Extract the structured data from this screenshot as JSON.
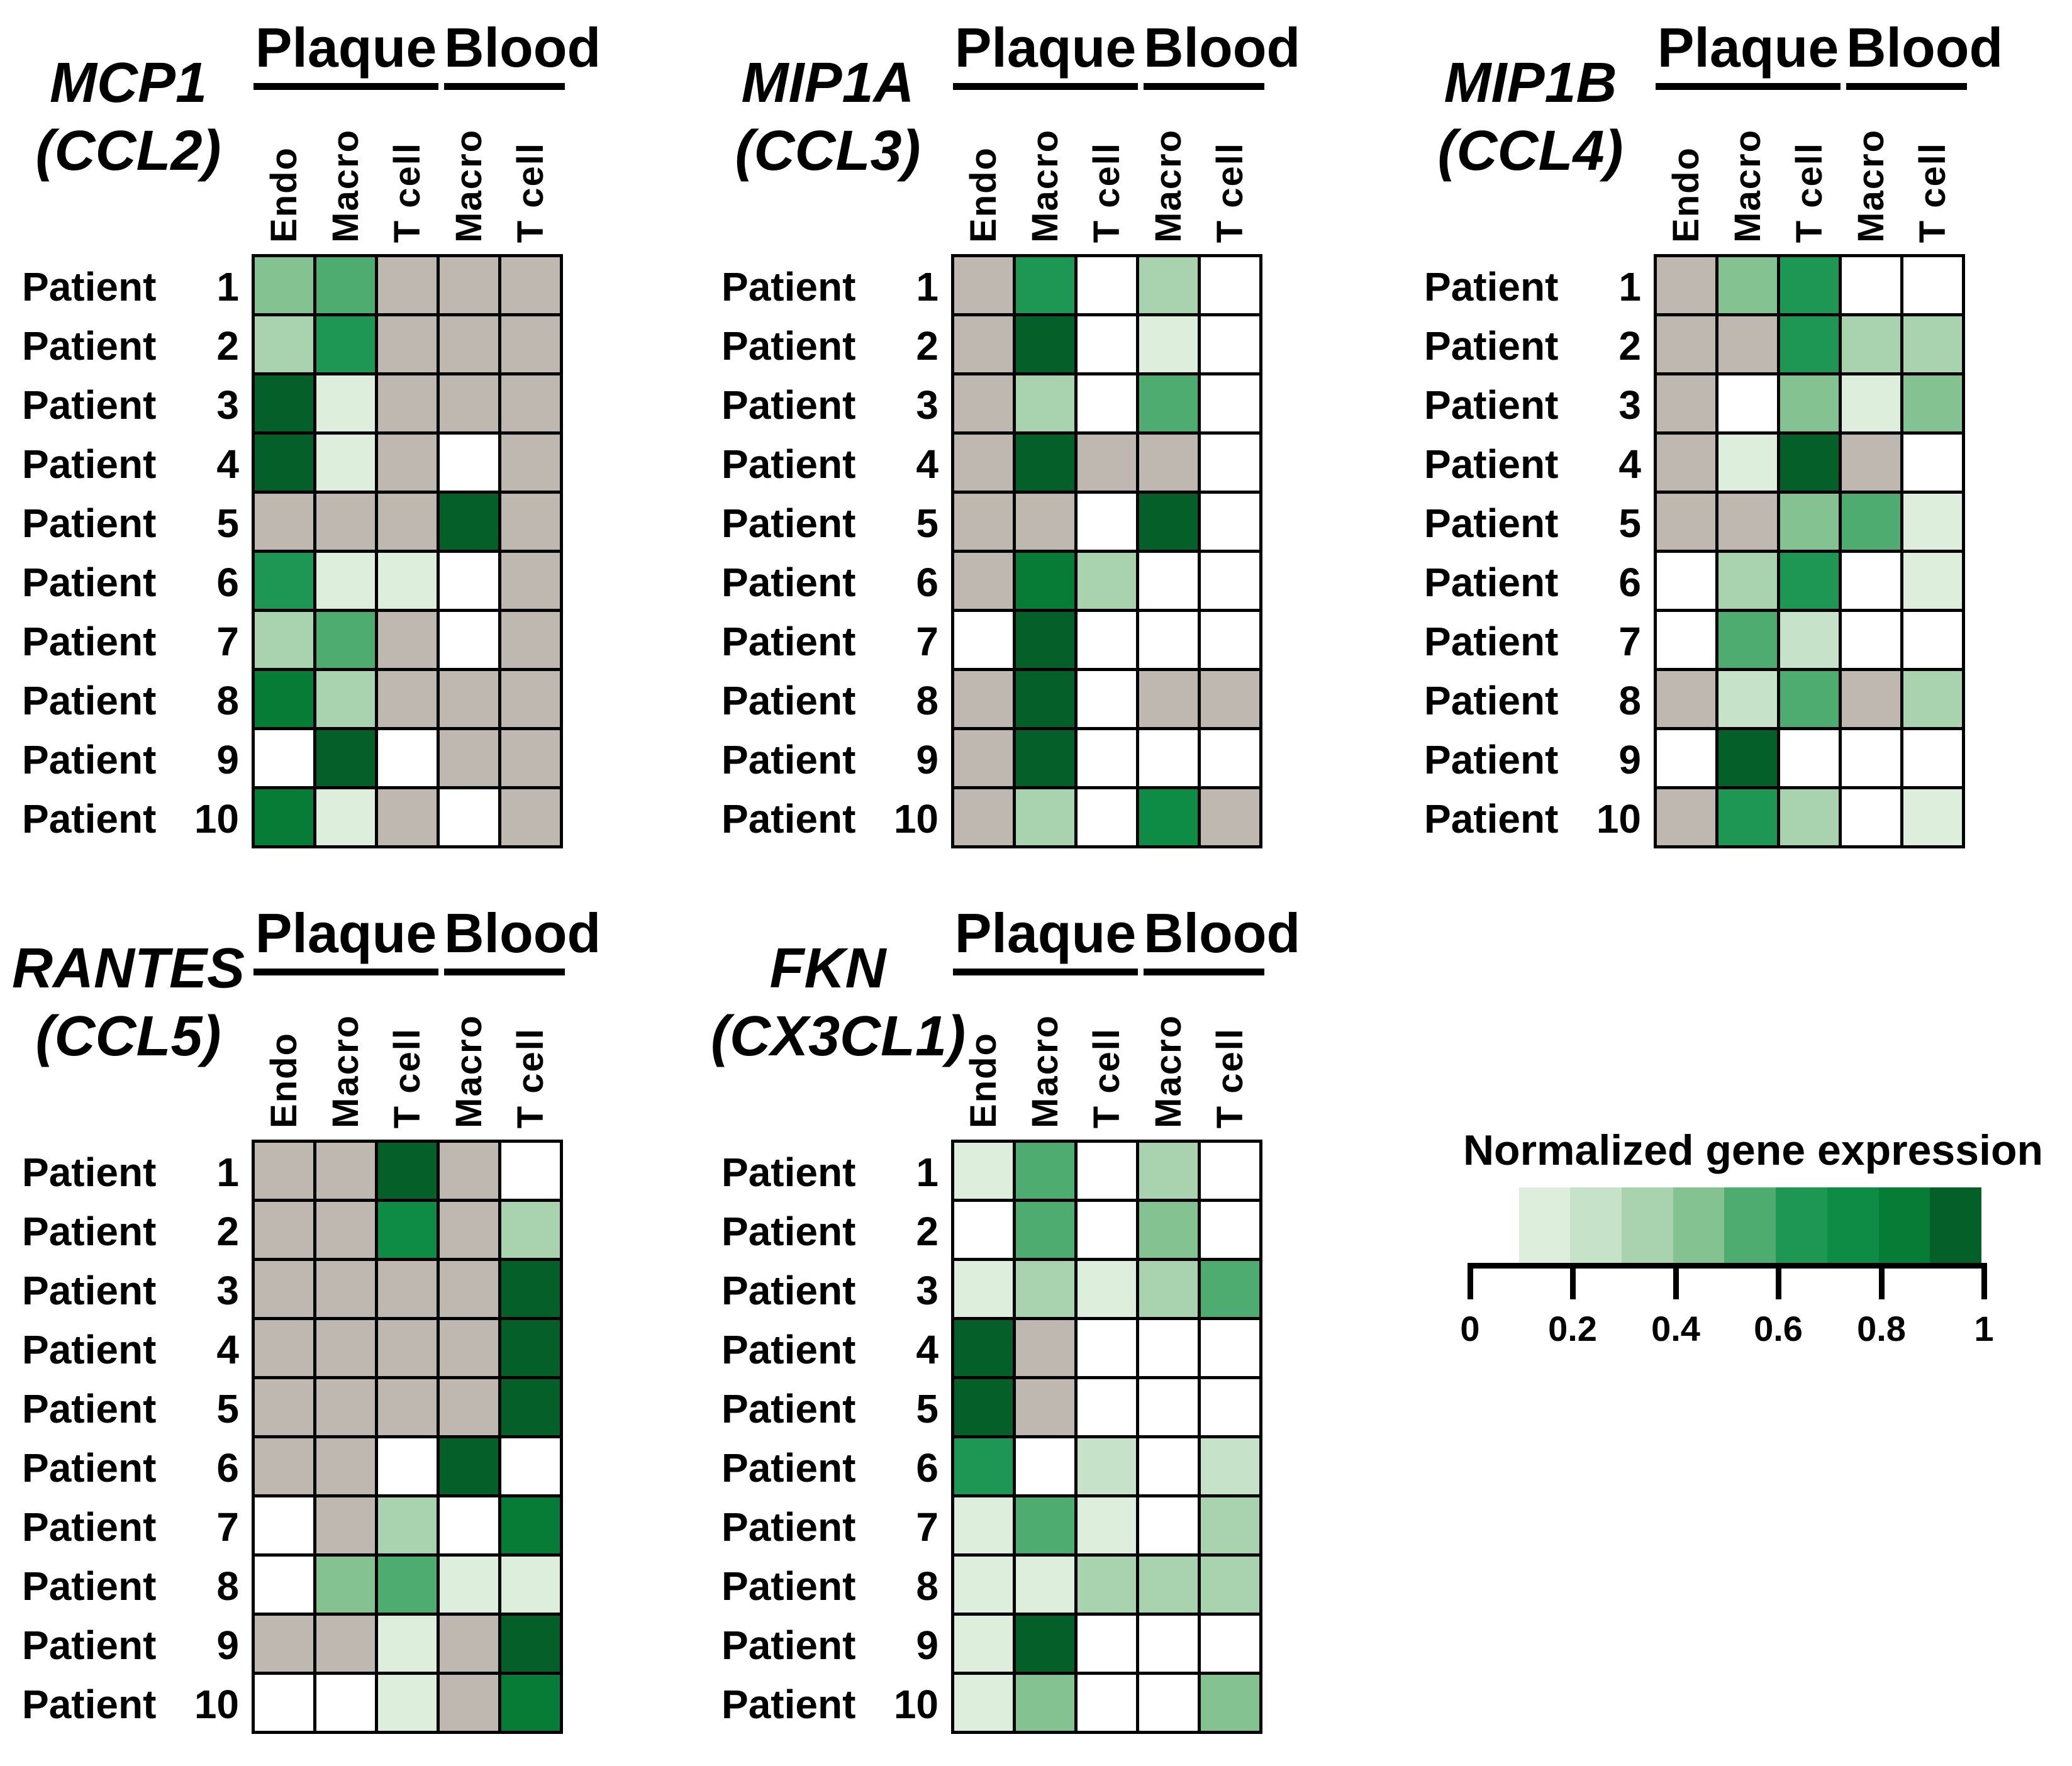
{
  "legend": {
    "title": "Normalized gene expression",
    "tick_labels": [
      "0",
      "0.2",
      "0.4",
      "0.6",
      "0.8",
      "1"
    ],
    "tick_values": [
      0,
      0.2,
      0.4,
      0.6,
      0.8,
      1
    ],
    "palette": [
      "#ddeedd",
      "#c6e2c8",
      "#a9d3ae",
      "#85c292",
      "#4fac70",
      "#1d9753",
      "#0e8b44",
      "#077c37",
      "#045f28"
    ],
    "na_color": "#bfb8b1",
    "zero_color": "#ffffff",
    "bar_range": [
      0.1,
      1
    ]
  },
  "col_groups": [
    {
      "label": "Plaque",
      "span": 3
    },
    {
      "label": "Blood",
      "span": 2
    }
  ],
  "col_labels": [
    "Endo",
    "Macro",
    "T cell",
    "Macro",
    "T cell"
  ],
  "row_labels": [
    {
      "word": "Patient",
      "num": "1"
    },
    {
      "word": "Patient",
      "num": "2"
    },
    {
      "word": "Patient",
      "num": "3"
    },
    {
      "word": "Patient",
      "num": "4"
    },
    {
      "word": "Patient",
      "num": "5"
    },
    {
      "word": "Patient",
      "num": "6"
    },
    {
      "word": "Patient",
      "num": "7"
    },
    {
      "word": "Patient",
      "num": "8"
    },
    {
      "word": "Patient",
      "num": "9"
    },
    {
      "word": "Patient",
      "num": "10"
    }
  ],
  "chart_data": [
    {
      "type": "heatmap",
      "gene": "MCP1",
      "alias": "(CCL2)",
      "columns": [
        "Plaque Endo",
        "Plaque Macro",
        "Plaque T cell",
        "Blood Macro",
        "Blood T cell"
      ],
      "rows": [
        "Patient 1",
        "Patient 2",
        "Patient 3",
        "Patient 4",
        "Patient 5",
        "Patient 6",
        "Patient 7",
        "Patient 8",
        "Patient 9",
        "Patient 10"
      ],
      "values": [
        [
          0.45,
          0.55,
          "NA",
          "NA",
          "NA"
        ],
        [
          0.3,
          0.65,
          "NA",
          "NA",
          "NA"
        ],
        [
          0.9,
          0.15,
          "NA",
          "NA",
          "NA"
        ],
        [
          0.9,
          0.15,
          "NA",
          0,
          "NA"
        ],
        [
          "NA",
          "NA",
          "NA",
          0.9,
          "NA"
        ],
        [
          0.6,
          0.15,
          0.15,
          0,
          "NA"
        ],
        [
          0.3,
          0.55,
          "NA",
          0,
          "NA"
        ],
        [
          0.85,
          0.3,
          "NA",
          "NA",
          "NA"
        ],
        [
          0,
          0.9,
          0,
          "NA",
          "NA"
        ],
        [
          0.85,
          0.15,
          "NA",
          0,
          "NA"
        ]
      ]
    },
    {
      "type": "heatmap",
      "gene": "MIP1A",
      "alias": "(CCL3)",
      "columns": [
        "Plaque Endo",
        "Plaque Macro",
        "Plaque T cell",
        "Blood Macro",
        "Blood T cell"
      ],
      "rows": [
        "Patient 1",
        "Patient 2",
        "Patient 3",
        "Patient 4",
        "Patient 5",
        "Patient 6",
        "Patient 7",
        "Patient 8",
        "Patient 9",
        "Patient 10"
      ],
      "values": [
        [
          "NA",
          0.65,
          0,
          0.3,
          0
        ],
        [
          "NA",
          0.9,
          0,
          0.15,
          0
        ],
        [
          "NA",
          0.35,
          0,
          0.55,
          0
        ],
        [
          "NA",
          0.9,
          "NA",
          "NA",
          0
        ],
        [
          "NA",
          "NA",
          0,
          0.9,
          0
        ],
        [
          "NA",
          0.85,
          0.3,
          0,
          0
        ],
        [
          0,
          0.9,
          0,
          0,
          0
        ],
        [
          "NA",
          0.95,
          0,
          "NA",
          "NA"
        ],
        [
          "NA",
          0.9,
          0,
          0,
          0
        ],
        [
          "NA",
          0.3,
          0,
          0.7,
          "NA"
        ]
      ]
    },
    {
      "type": "heatmap",
      "gene": "MIP1B",
      "alias": "(CCL4)",
      "columns": [
        "Plaque Endo",
        "Plaque Macro",
        "Plaque T cell",
        "Blood Macro",
        "Blood T cell"
      ],
      "rows": [
        "Patient 1",
        "Patient 2",
        "Patient 3",
        "Patient 4",
        "Patient 5",
        "Patient 6",
        "Patient 7",
        "Patient 8",
        "Patient 9",
        "Patient 10"
      ],
      "values": [
        [
          "NA",
          0.4,
          0.6,
          0,
          0
        ],
        [
          "NA",
          "NA",
          0.6,
          0.3,
          0.35
        ],
        [
          "NA",
          0,
          0.45,
          0.15,
          0.45
        ],
        [
          "NA",
          0.15,
          0.9,
          "NA",
          0
        ],
        [
          "NA",
          "NA",
          0.4,
          0.55,
          0.15
        ],
        [
          0,
          0.3,
          0.6,
          0,
          0.15
        ],
        [
          0,
          0.55,
          0.25,
          0,
          0
        ],
        [
          "NA",
          0.25,
          0.5,
          "NA",
          0.35
        ],
        [
          0,
          0.95,
          0,
          0,
          0
        ],
        [
          "NA",
          0.6,
          0.3,
          0,
          0.15
        ]
      ]
    },
    {
      "type": "heatmap",
      "gene": "RANTES",
      "alias": "(CCL5)",
      "columns": [
        "Plaque Endo",
        "Plaque Macro",
        "Plaque T cell",
        "Blood Macro",
        "Blood T cell"
      ],
      "rows": [
        "Patient 1",
        "Patient 2",
        "Patient 3",
        "Patient 4",
        "Patient 5",
        "Patient 6",
        "Patient 7",
        "Patient 8",
        "Patient 9",
        "Patient 10"
      ],
      "values": [
        [
          "NA",
          "NA",
          0.95,
          "NA",
          0
        ],
        [
          "NA",
          "NA",
          0.75,
          "NA",
          0.3
        ],
        [
          "NA",
          "NA",
          "NA",
          "NA",
          0.9
        ],
        [
          "NA",
          "NA",
          "NA",
          "NA",
          0.9
        ],
        [
          "NA",
          "NA",
          "NA",
          "NA",
          0.9
        ],
        [
          "NA",
          "NA",
          0,
          0.9,
          0
        ],
        [
          0,
          "NA",
          0.3,
          0,
          0.8
        ],
        [
          0,
          0.45,
          0.5,
          0.15,
          0.15
        ],
        [
          "NA",
          "NA",
          0.15,
          "NA",
          0.9
        ],
        [
          0,
          0,
          0.15,
          "NA",
          0.8
        ]
      ]
    },
    {
      "type": "heatmap",
      "gene": "FKN",
      "alias": "(CX3CL1)",
      "columns": [
        "Plaque Endo",
        "Plaque Macro",
        "Plaque T cell",
        "Blood Macro",
        "Blood T cell"
      ],
      "rows": [
        "Patient 1",
        "Patient 2",
        "Patient 3",
        "Patient 4",
        "Patient 5",
        "Patient 6",
        "Patient 7",
        "Patient 8",
        "Patient 9",
        "Patient 10"
      ],
      "values": [
        [
          0.15,
          0.5,
          0,
          0.3,
          0
        ],
        [
          0,
          0.5,
          0,
          0.45,
          0
        ],
        [
          0.15,
          0.3,
          0.15,
          0.35,
          0.5
        ],
        [
          0.9,
          "NA",
          0,
          0,
          0
        ],
        [
          0.9,
          "NA",
          0,
          0,
          0
        ],
        [
          0.6,
          0,
          0.2,
          0,
          0.2
        ],
        [
          0.15,
          0.5,
          0.15,
          0,
          0.35
        ],
        [
          0.15,
          0.15,
          0.35,
          0.35,
          0.35
        ],
        [
          0.15,
          0.9,
          0,
          0,
          0
        ],
        [
          0.15,
          0.4,
          0,
          0,
          0.4
        ]
      ]
    }
  ]
}
